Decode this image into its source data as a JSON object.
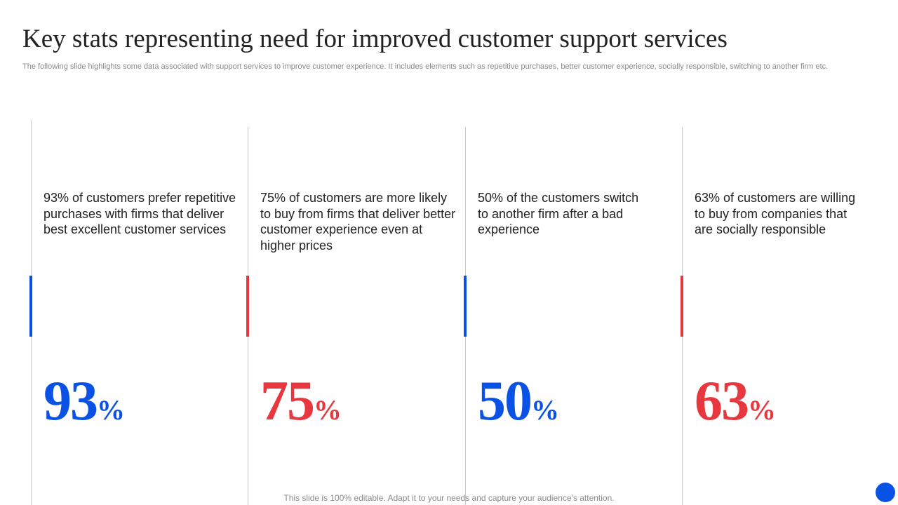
{
  "header": {
    "title": "Key stats representing need for improved customer support services",
    "subtitle": "The following slide highlights some data associated with support services to improve customer experience. It includes elements such as repetitive purchases, better customer experience, socially responsible, switching to another firm etc."
  },
  "colors": {
    "blue": "#0A52E6",
    "red": "#E8383F"
  },
  "stats": [
    {
      "text": "93% of customers prefer repetitive purchases with firms that deliver best excellent customer services",
      "number": "93",
      "unit": "%",
      "accent": "#0A52E6"
    },
    {
      "text": "75% of customers are more likely to buy from firms that deliver better customer experience even at higher prices",
      "number": "75",
      "unit": "%",
      "accent": "#E8383F"
    },
    {
      "text": "50% of the customers switch to another firm after a bad experience",
      "number": "50",
      "unit": "%",
      "accent": "#0A52E6"
    },
    {
      "text": "63% of customers are willing to buy from companies that are socially responsible",
      "number": "63",
      "unit": "%",
      "accent": "#E8383F"
    }
  ],
  "footer": {
    "note": "This slide is 100% editable. Adapt it to your needs and capture your audience's attention."
  }
}
